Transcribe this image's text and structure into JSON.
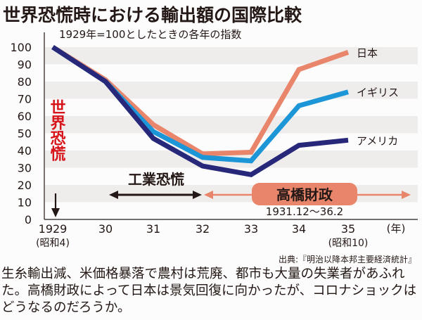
{
  "title": "世界恐慌時における輸出額の国際比較",
  "subtitle": "1929年=100としたときの各年の指数",
  "source": "出典:『明治以降本邦主要経済統計』",
  "caption": "生糸輸出減、米価格暴落で農村は荒廃、都市も大量の失業者があふれた。高橋財政によって日本は景気回復に向かったが、コロナショックはどうなるのだろうか。",
  "annotations": {
    "world_depression": "世界恐慌",
    "industrial_depression": "工業恐慌",
    "takahashi": "高橋財政",
    "takahashi_period": "1931.12〜36.2"
  },
  "chart_data": {
    "type": "line",
    "title": "世界恐慌時における輸出額の国際比較",
    "ylabel": "1929年=100としたときの各年の指数",
    "xlabel": "(年)",
    "x": [
      1929,
      1930,
      1931,
      1932,
      1933,
      1934,
      1935
    ],
    "x_tick_labels": [
      "1929",
      "30",
      "31",
      "32",
      "33",
      "34",
      "35"
    ],
    "x_sub_labels": {
      "1929": "(昭和4)",
      "35": "(昭和10)"
    },
    "y_ticks": [
      0,
      10,
      20,
      30,
      40,
      50,
      60,
      70,
      80,
      90,
      100
    ],
    "ylim": [
      0,
      100
    ],
    "grid": "alternating horizontal bands",
    "series": [
      {
        "name": "日本",
        "color": "#e8856a",
        "values": [
          100,
          81,
          55,
          38,
          39,
          87,
          97
        ]
      },
      {
        "name": "イギリス",
        "color": "#1d96d8",
        "values": [
          100,
          80,
          51,
          36,
          34,
          66,
          74
        ]
      },
      {
        "name": "アメリカ",
        "color": "#27287a",
        "values": [
          100,
          80,
          47,
          31,
          26,
          43,
          46
        ]
      }
    ]
  },
  "colors": {
    "accent_red": "#d7141a",
    "band": "#efedec",
    "takahashi": "#e8856a"
  }
}
